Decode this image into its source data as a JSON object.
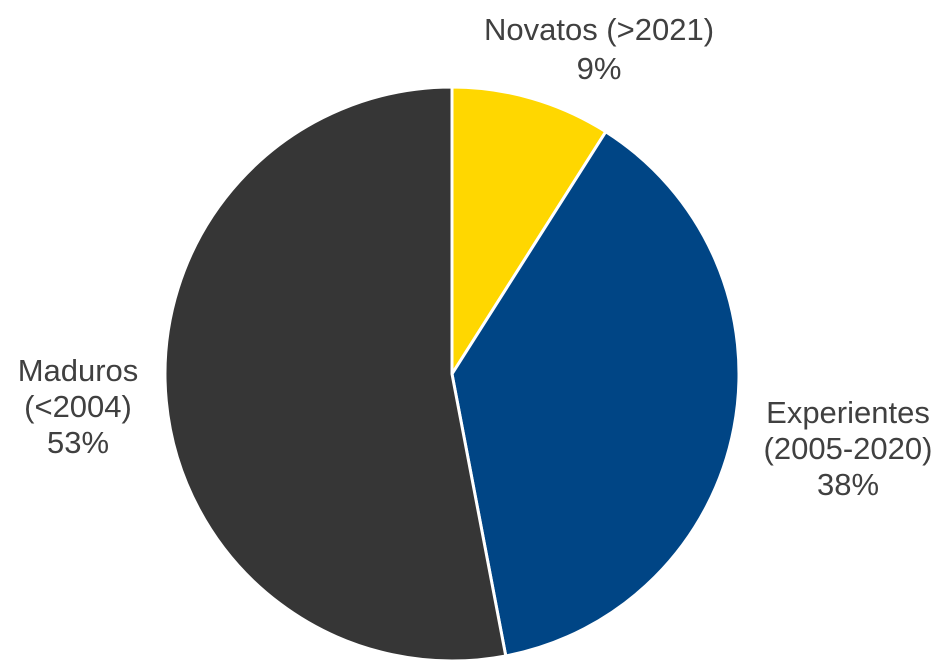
{
  "chart_data": {
    "type": "pie",
    "categories": [
      "Novatos (>2021)",
      "Experientes (2005-2020)",
      "Maduros (<2004)"
    ],
    "values": [
      9,
      38,
      53
    ],
    "colors": [
      "#FFD700",
      "#004585",
      "#363636"
    ],
    "slices": [
      {
        "label_lines": [
          "Novatos (>2021)"
        ],
        "value_label": "9%"
      },
      {
        "label_lines": [
          "Experientes",
          "(2005-2020)"
        ],
        "value_label": "38%"
      },
      {
        "label_lines": [
          "Maduros",
          "(<2004)"
        ],
        "value_label": "53%"
      }
    ],
    "start_angle_deg": 0,
    "direction": "clockwise",
    "slice_border_color": "#ffffff"
  }
}
